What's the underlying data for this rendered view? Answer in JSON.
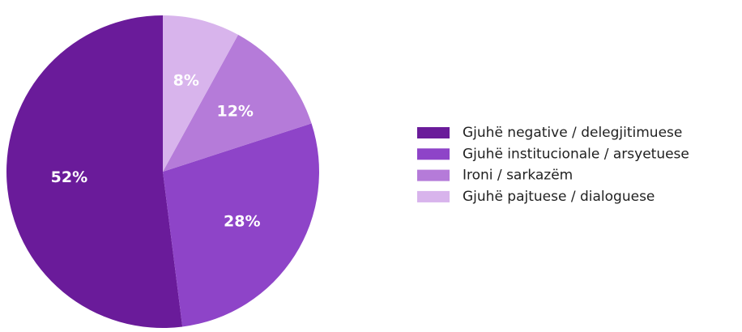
{
  "chart_data": {
    "type": "pie",
    "categories": [
      "Gjuhë negative / delegjitimuese",
      "Gjuhë institucionale / arsyetuese",
      "Ironi / sarkazëm",
      "Gjuhë pajtuese / dialoguese"
    ],
    "values": [
      52,
      28,
      12,
      8
    ],
    "value_labels": [
      "52%",
      "28%",
      "12%",
      "8%"
    ],
    "colors": [
      "#6a1b9a",
      "#8e44c8",
      "#b57bd9",
      "#d8b4ec"
    ],
    "legend": "right"
  }
}
